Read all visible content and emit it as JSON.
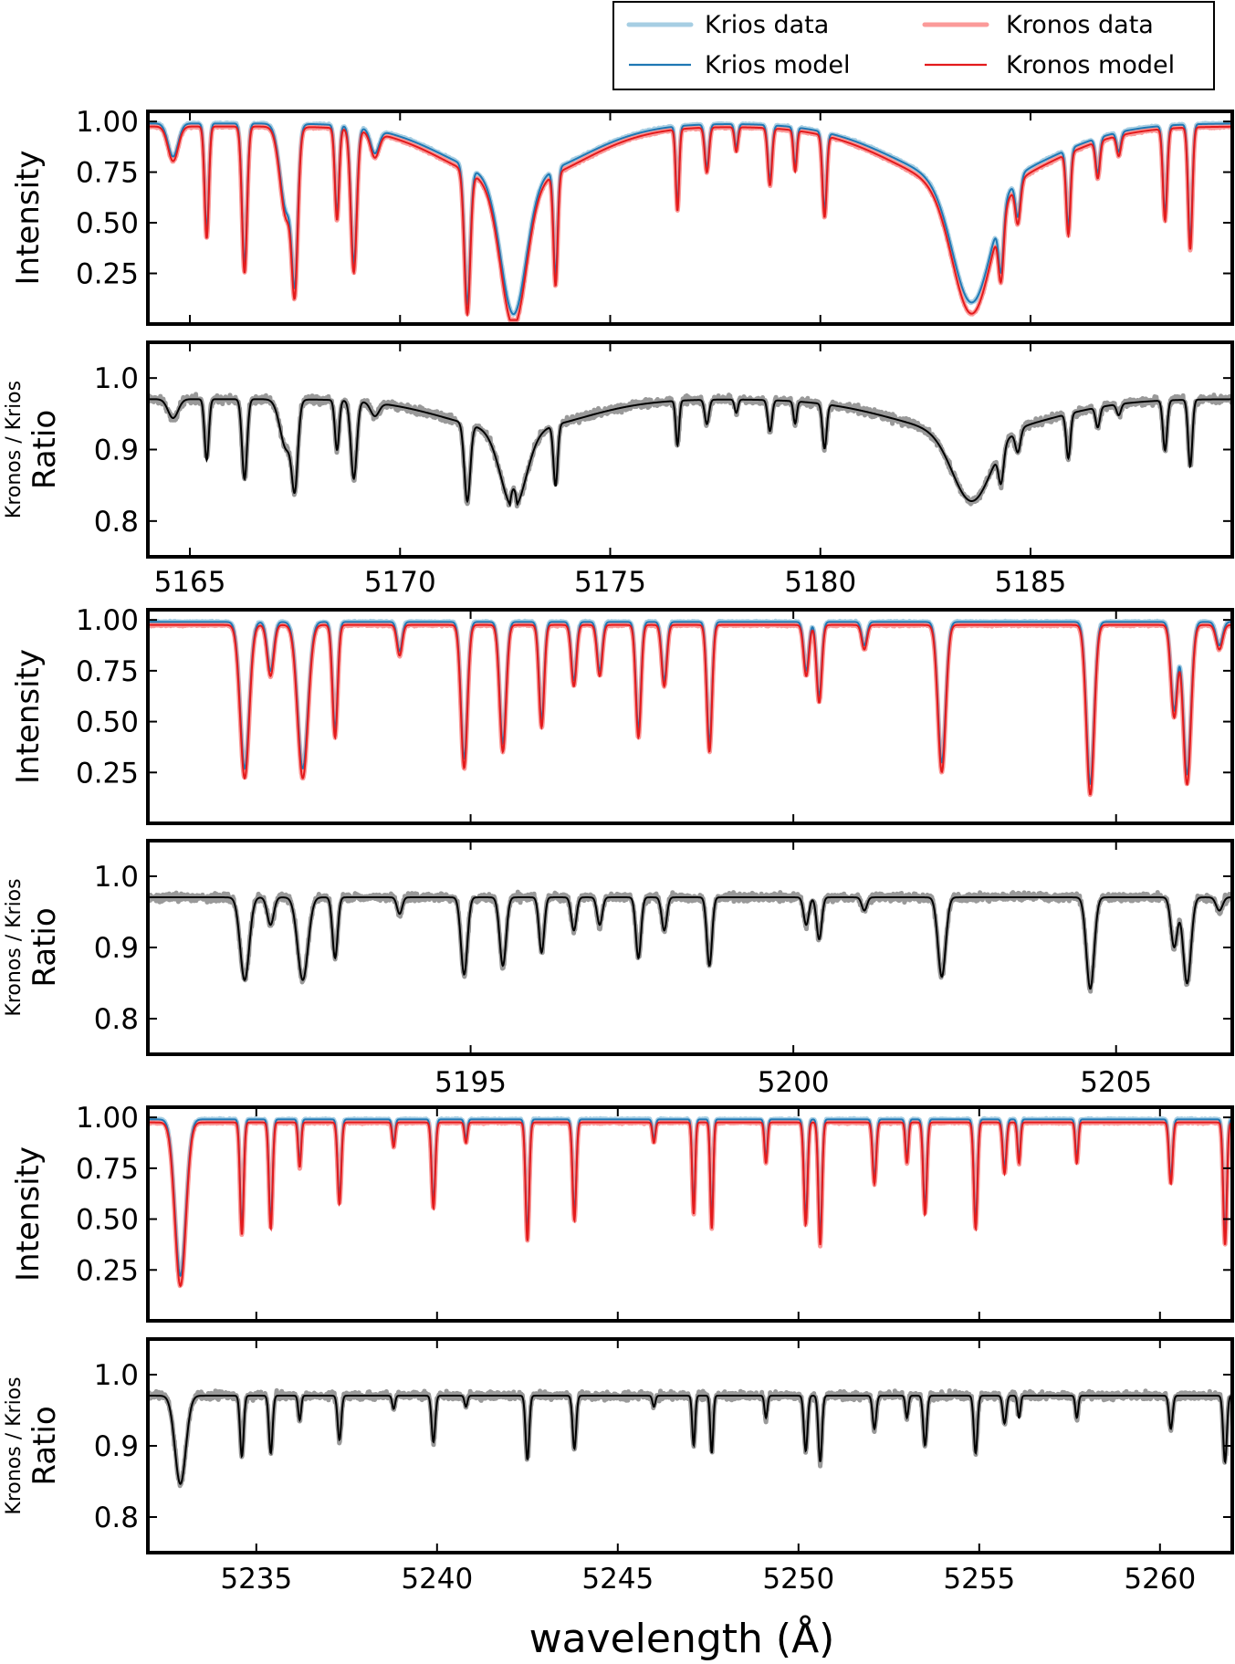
{
  "legend": {
    "placement": "top-right",
    "items": [
      {
        "label": "Krios data",
        "color": "#a6cee3",
        "style": "data"
      },
      {
        "label": "Kronos data",
        "color": "#fb9a99",
        "style": "data"
      },
      {
        "label": "Krios model",
        "color": "#1f78b4",
        "style": "model"
      },
      {
        "label": "Kronos model",
        "color": "#e31a1c",
        "style": "model"
      }
    ]
  },
  "xlabel": "wavelength (Å)",
  "intensity_ylabel": "Intensity",
  "ratio_ylabel_top": "Kronos / Krios",
  "ratio_ylabel_bottom": "Ratio",
  "colors": {
    "ratio_data": "#999999",
    "ratio_model": "#000000"
  },
  "chart_data": [
    {
      "type": "line",
      "xlim": [
        5164.0,
        5189.8
      ],
      "xticks": [
        5165,
        5170,
        5175,
        5180,
        5185
      ],
      "intensity_ylim": [
        0.0,
        1.05
      ],
      "intensity_yticks": [
        "0.25",
        "0.50",
        "0.75",
        "1.00"
      ],
      "ratio_ylim": [
        0.75,
        1.05
      ],
      "ratio_yticks": [
        "0.8",
        "0.9",
        "1.0"
      ],
      "absorption_lines": [
        {
          "center": 5164.6,
          "depth": 0.17,
          "width": 0.12
        },
        {
          "center": 5165.4,
          "depth": 0.55,
          "width": 0.05
        },
        {
          "center": 5166.3,
          "depth": 0.72,
          "width": 0.06
        },
        {
          "center": 5167.3,
          "depth": 0.45,
          "width": 0.15
        },
        {
          "center": 5167.5,
          "depth": 0.65,
          "width": 0.07
        },
        {
          "center": 5168.5,
          "depth": 0.45,
          "width": 0.05
        },
        {
          "center": 5168.9,
          "depth": 0.7,
          "width": 0.07
        },
        {
          "center": 5169.4,
          "depth": 0.12,
          "width": 0.1
        },
        {
          "center": 5171.6,
          "depth": 0.7,
          "width": 0.07
        },
        {
          "center": 5172.7,
          "depth": 0.7,
          "width": 0.3
        },
        {
          "center": 5173.7,
          "depth": 0.55,
          "width": 0.05
        },
        {
          "center": 5176.6,
          "depth": 0.4,
          "width": 0.04
        },
        {
          "center": 5177.3,
          "depth": 0.22,
          "width": 0.05
        },
        {
          "center": 5178.0,
          "depth": 0.12,
          "width": 0.04
        },
        {
          "center": 5178.8,
          "depth": 0.28,
          "width": 0.05
        },
        {
          "center": 5179.4,
          "depth": 0.2,
          "width": 0.04
        },
        {
          "center": 5180.1,
          "depth": 0.4,
          "width": 0.05
        },
        {
          "center": 5183.6,
          "depth": 0.62,
          "width": 0.45
        },
        {
          "center": 5184.3,
          "depth": 0.3,
          "width": 0.06
        },
        {
          "center": 5184.7,
          "depth": 0.2,
          "width": 0.06
        },
        {
          "center": 5185.9,
          "depth": 0.4,
          "width": 0.05
        },
        {
          "center": 5186.6,
          "depth": 0.18,
          "width": 0.05
        },
        {
          "center": 5187.1,
          "depth": 0.1,
          "width": 0.05
        },
        {
          "center": 5188.2,
          "depth": 0.45,
          "width": 0.05
        },
        {
          "center": 5188.8,
          "depth": 0.6,
          "width": 0.05
        }
      ],
      "broad_features": [
        {
          "center": 5172.7,
          "depth": 0.28,
          "width": 1.6
        },
        {
          "center": 5183.6,
          "depth": 0.3,
          "width": 1.8
        }
      ]
    },
    {
      "type": "line",
      "xlim": [
        5190.0,
        5206.8
      ],
      "xticks": [
        5195,
        5200,
        5205
      ],
      "intensity_ylim": [
        0.0,
        1.05
      ],
      "intensity_yticks": [
        "0.25",
        "0.50",
        "0.75",
        "1.00"
      ],
      "ratio_ylim": [
        0.75,
        1.05
      ],
      "ratio_yticks": [
        "0.8",
        "0.9",
        "1.0"
      ],
      "absorption_lines": [
        {
          "center": 5191.5,
          "depth": 0.75,
          "width": 0.07
        },
        {
          "center": 5191.9,
          "depth": 0.25,
          "width": 0.05
        },
        {
          "center": 5192.4,
          "depth": 0.75,
          "width": 0.08
        },
        {
          "center": 5192.9,
          "depth": 0.55,
          "width": 0.04
        },
        {
          "center": 5193.9,
          "depth": 0.15,
          "width": 0.04
        },
        {
          "center": 5194.9,
          "depth": 0.7,
          "width": 0.05
        },
        {
          "center": 5195.5,
          "depth": 0.62,
          "width": 0.05
        },
        {
          "center": 5196.1,
          "depth": 0.5,
          "width": 0.04
        },
        {
          "center": 5196.6,
          "depth": 0.3,
          "width": 0.04
        },
        {
          "center": 5197.0,
          "depth": 0.25,
          "width": 0.04
        },
        {
          "center": 5197.6,
          "depth": 0.55,
          "width": 0.04
        },
        {
          "center": 5198.0,
          "depth": 0.3,
          "width": 0.04
        },
        {
          "center": 5198.7,
          "depth": 0.62,
          "width": 0.04
        },
        {
          "center": 5200.2,
          "depth": 0.25,
          "width": 0.04
        },
        {
          "center": 5200.4,
          "depth": 0.38,
          "width": 0.04
        },
        {
          "center": 5201.1,
          "depth": 0.12,
          "width": 0.04
        },
        {
          "center": 5202.3,
          "depth": 0.72,
          "width": 0.06
        },
        {
          "center": 5204.6,
          "depth": 0.83,
          "width": 0.06
        },
        {
          "center": 5205.9,
          "depth": 0.45,
          "width": 0.05
        },
        {
          "center": 5206.1,
          "depth": 0.78,
          "width": 0.06
        },
        {
          "center": 5206.6,
          "depth": 0.12,
          "width": 0.05
        }
      ],
      "broad_features": []
    },
    {
      "type": "line",
      "xlim": [
        5232.0,
        5262.0
      ],
      "xticks": [
        5235,
        5240,
        5245,
        5250,
        5255,
        5260
      ],
      "intensity_ylim": [
        0.0,
        1.05
      ],
      "intensity_yticks": [
        "0.25",
        "0.50",
        "0.75",
        "1.00"
      ],
      "ratio_ylim": [
        0.75,
        1.05
      ],
      "ratio_yticks": [
        "0.8",
        "0.9",
        "1.0"
      ],
      "absorption_lines": [
        {
          "center": 5232.9,
          "depth": 0.8,
          "width": 0.15
        },
        {
          "center": 5234.6,
          "depth": 0.55,
          "width": 0.05
        },
        {
          "center": 5235.4,
          "depth": 0.52,
          "width": 0.05
        },
        {
          "center": 5236.2,
          "depth": 0.22,
          "width": 0.04
        },
        {
          "center": 5237.3,
          "depth": 0.4,
          "width": 0.05
        },
        {
          "center": 5238.8,
          "depth": 0.12,
          "width": 0.04
        },
        {
          "center": 5239.9,
          "depth": 0.42,
          "width": 0.05
        },
        {
          "center": 5240.8,
          "depth": 0.1,
          "width": 0.04
        },
        {
          "center": 5242.5,
          "depth": 0.58,
          "width": 0.05
        },
        {
          "center": 5243.8,
          "depth": 0.48,
          "width": 0.05
        },
        {
          "center": 5246.0,
          "depth": 0.1,
          "width": 0.04
        },
        {
          "center": 5247.1,
          "depth": 0.45,
          "width": 0.04
        },
        {
          "center": 5247.6,
          "depth": 0.52,
          "width": 0.04
        },
        {
          "center": 5249.1,
          "depth": 0.2,
          "width": 0.04
        },
        {
          "center": 5250.2,
          "depth": 0.5,
          "width": 0.05
        },
        {
          "center": 5250.6,
          "depth": 0.6,
          "width": 0.05
        },
        {
          "center": 5252.1,
          "depth": 0.3,
          "width": 0.05
        },
        {
          "center": 5253.0,
          "depth": 0.2,
          "width": 0.04
        },
        {
          "center": 5253.5,
          "depth": 0.45,
          "width": 0.05
        },
        {
          "center": 5254.9,
          "depth": 0.52,
          "width": 0.05
        },
        {
          "center": 5255.7,
          "depth": 0.25,
          "width": 0.05
        },
        {
          "center": 5256.1,
          "depth": 0.2,
          "width": 0.04
        },
        {
          "center": 5257.7,
          "depth": 0.2,
          "width": 0.04
        },
        {
          "center": 5260.3,
          "depth": 0.3,
          "width": 0.05
        },
        {
          "center": 5261.8,
          "depth": 0.6,
          "width": 0.05
        }
      ],
      "broad_features": []
    }
  ]
}
